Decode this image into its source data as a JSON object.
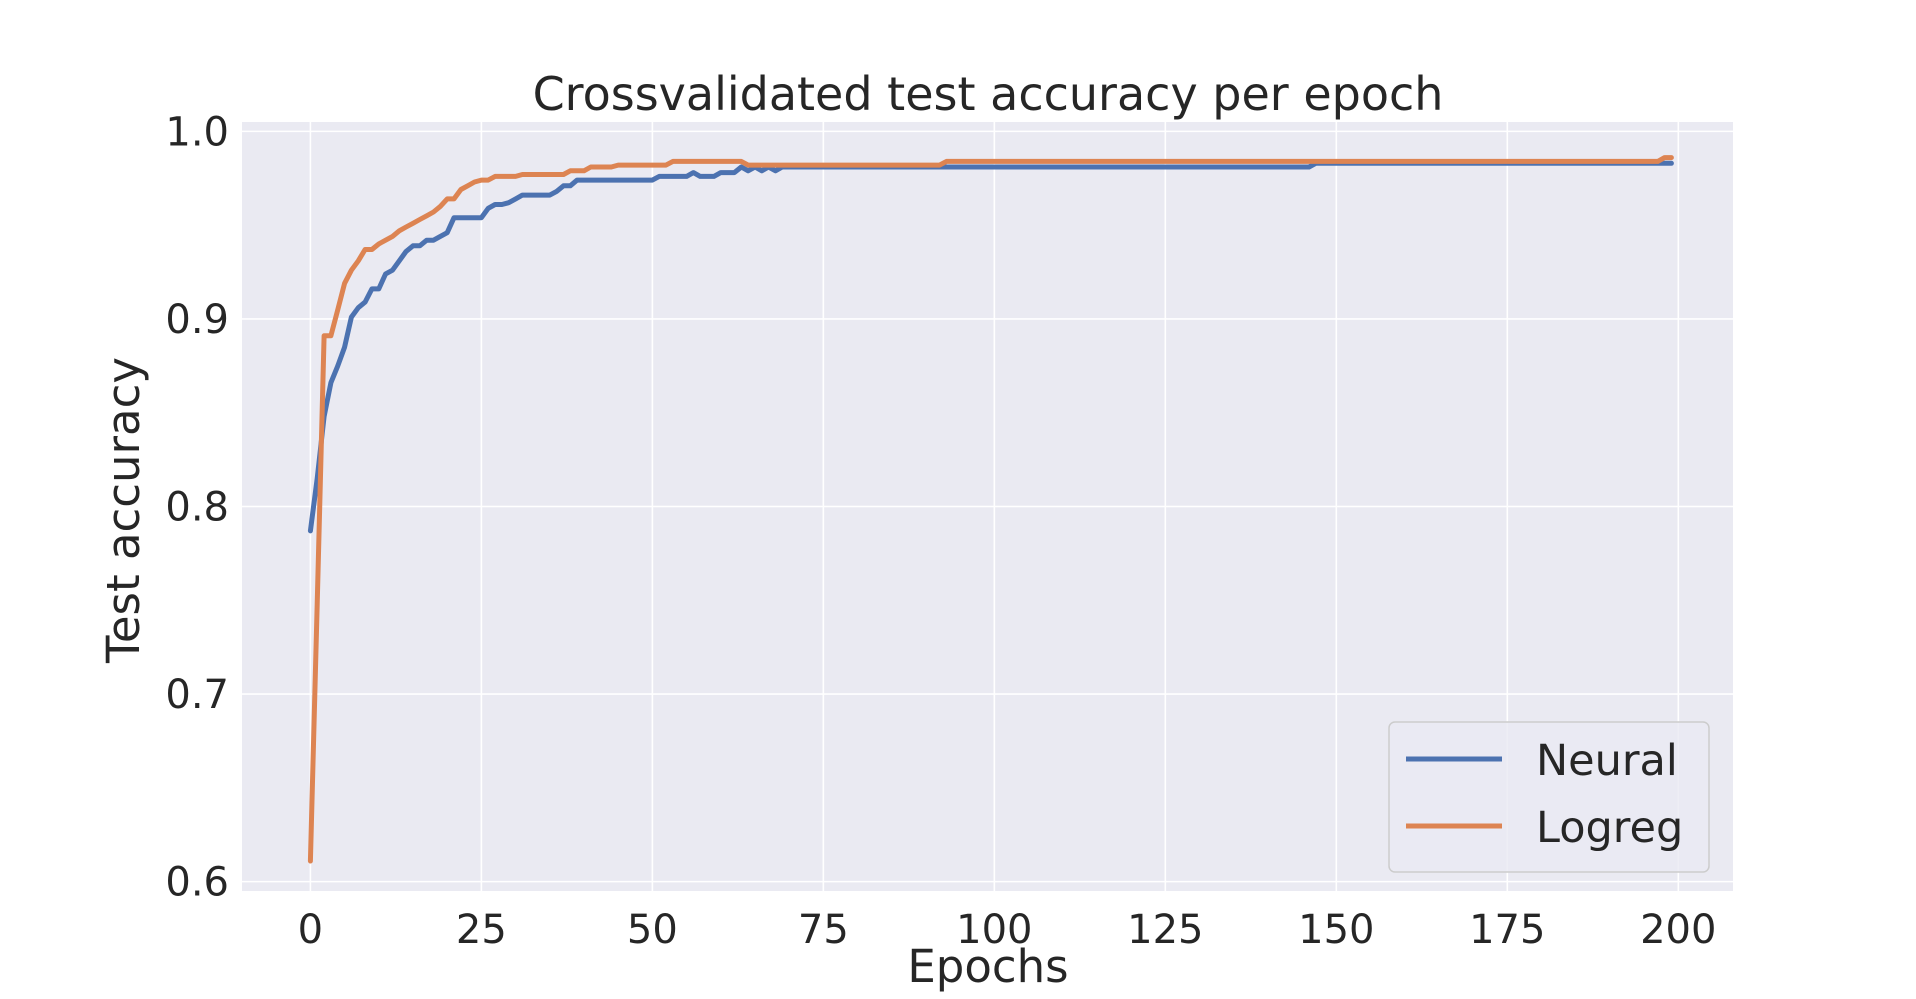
{
  "chart_data": {
    "type": "line",
    "title": "Crossvalidated test accuracy per epoch",
    "xlabel": "Epochs",
    "ylabel": "Test accuracy",
    "xlim": [
      -10,
      208
    ],
    "ylim": [
      0.595,
      1.005
    ],
    "xticks": [
      0,
      25,
      50,
      75,
      100,
      125,
      150,
      175,
      200
    ],
    "yticks": [
      0.6,
      0.7,
      0.8,
      0.9,
      1.0
    ],
    "xtick_labels": [
      "0",
      "25",
      "50",
      "75",
      "100",
      "125",
      "150",
      "175",
      "200"
    ],
    "ytick_labels": [
      "0.6",
      "0.7",
      "0.8",
      "0.9",
      "1.0"
    ],
    "grid": true,
    "background": "#eaeaf2",
    "legend_position": "lower-right",
    "series": [
      {
        "name": "Neural",
        "color": "#4c72b0",
        "points": [
          [
            0,
            0.787
          ],
          [
            1,
            0.815
          ],
          [
            2,
            0.848
          ],
          [
            3,
            0.866
          ],
          [
            4,
            0.875
          ],
          [
            5,
            0.885
          ],
          [
            6,
            0.901
          ],
          [
            7,
            0.906
          ],
          [
            8,
            0.909
          ],
          [
            9,
            0.916
          ],
          [
            10,
            0.916
          ],
          [
            11,
            0.924
          ],
          [
            12,
            0.926
          ],
          [
            13,
            0.931
          ],
          [
            14,
            0.936
          ],
          [
            15,
            0.939
          ],
          [
            16,
            0.939
          ],
          [
            17,
            0.942
          ],
          [
            18,
            0.942
          ],
          [
            19,
            0.944
          ],
          [
            20,
            0.946
          ],
          [
            21,
            0.954
          ],
          [
            22,
            0.954
          ],
          [
            23,
            0.954
          ],
          [
            24,
            0.954
          ],
          [
            25,
            0.954
          ],
          [
            26,
            0.959
          ],
          [
            27,
            0.961
          ],
          [
            28,
            0.961
          ],
          [
            29,
            0.962
          ],
          [
            30,
            0.964
          ],
          [
            31,
            0.966
          ],
          [
            32,
            0.966
          ],
          [
            33,
            0.966
          ],
          [
            34,
            0.966
          ],
          [
            35,
            0.966
          ],
          [
            36,
            0.968
          ],
          [
            37,
            0.971
          ],
          [
            38,
            0.971
          ],
          [
            39,
            0.974
          ],
          [
            40,
            0.974
          ],
          [
            45,
            0.974
          ],
          [
            50,
            0.974
          ],
          [
            51,
            0.976
          ],
          [
            55,
            0.976
          ],
          [
            56,
            0.978
          ],
          [
            57,
            0.976
          ],
          [
            59,
            0.976
          ],
          [
            60,
            0.978
          ],
          [
            62,
            0.978
          ],
          [
            63,
            0.981
          ],
          [
            64,
            0.979
          ],
          [
            65,
            0.981
          ],
          [
            66,
            0.979
          ],
          [
            67,
            0.981
          ],
          [
            68,
            0.979
          ],
          [
            69,
            0.981
          ],
          [
            70,
            0.981
          ],
          [
            100,
            0.981
          ],
          [
            146,
            0.981
          ],
          [
            147,
            0.983
          ],
          [
            199,
            0.983
          ]
        ]
      },
      {
        "name": "Logreg",
        "color": "#dd8452",
        "points": [
          [
            0,
            0.611
          ],
          [
            1,
            0.748
          ],
          [
            2,
            0.891
          ],
          [
            3,
            0.891
          ],
          [
            4,
            0.905
          ],
          [
            5,
            0.919
          ],
          [
            6,
            0.926
          ],
          [
            7,
            0.931
          ],
          [
            8,
            0.937
          ],
          [
            9,
            0.937
          ],
          [
            10,
            0.94
          ],
          [
            11,
            0.942
          ],
          [
            12,
            0.944
          ],
          [
            13,
            0.947
          ],
          [
            14,
            0.949
          ],
          [
            15,
            0.951
          ],
          [
            16,
            0.953
          ],
          [
            17,
            0.955
          ],
          [
            18,
            0.957
          ],
          [
            19,
            0.96
          ],
          [
            20,
            0.964
          ],
          [
            21,
            0.964
          ],
          [
            22,
            0.969
          ],
          [
            23,
            0.971
          ],
          [
            24,
            0.973
          ],
          [
            25,
            0.974
          ],
          [
            26,
            0.974
          ],
          [
            27,
            0.976
          ],
          [
            30,
            0.976
          ],
          [
            31,
            0.977
          ],
          [
            37,
            0.977
          ],
          [
            38,
            0.979
          ],
          [
            40,
            0.979
          ],
          [
            41,
            0.981
          ],
          [
            44,
            0.981
          ],
          [
            45,
            0.982
          ],
          [
            52,
            0.982
          ],
          [
            53,
            0.984
          ],
          [
            63,
            0.984
          ],
          [
            64,
            0.982
          ],
          [
            92,
            0.982
          ],
          [
            93,
            0.984
          ],
          [
            197,
            0.984
          ],
          [
            198,
            0.986
          ],
          [
            199,
            0.986
          ]
        ]
      }
    ]
  }
}
